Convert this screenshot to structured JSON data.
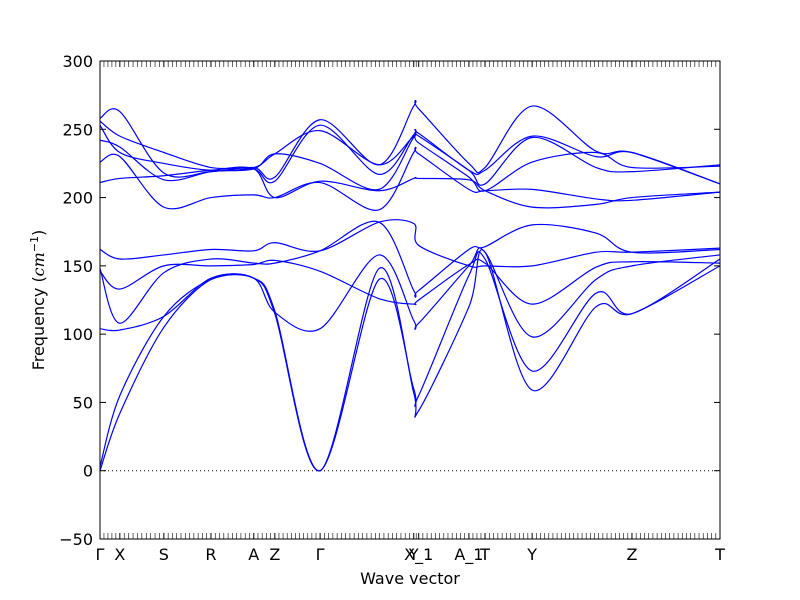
{
  "chart_data": {
    "type": "line",
    "title": "",
    "xlabel": "Wave vector",
    "ylabel": "Frequency ($cm^{-1}$)",
    "ylabel_parts": {
      "prefix": "Frequency (",
      "unit_base": "cm",
      "unit_exp": "−1",
      "suffix": ")"
    },
    "ylim": [
      -50,
      300
    ],
    "yticks": [
      -50,
      0,
      50,
      100,
      150,
      200,
      250,
      300
    ],
    "xlim": [
      0,
      1
    ],
    "x_points": [
      {
        "label": "Γ",
        "x": 0.0
      },
      {
        "label": "X",
        "x": 0.032
      },
      {
        "label": "S",
        "x": 0.103
      },
      {
        "label": "R",
        "x": 0.179
      },
      {
        "label": "A",
        "x": 0.248
      },
      {
        "label": "Z",
        "x": 0.282
      },
      {
        "label": "Γ",
        "x": 0.355
      },
      {
        "label": "Y",
        "x": 0.506
      },
      {
        "label": "X_1",
        "x": 0.514
      },
      {
        "label": "A_1",
        "x": 0.595
      },
      {
        "label": "T",
        "x": 0.621
      },
      {
        "label": "Y",
        "x": 0.697
      },
      {
        "label": "Z",
        "x": 0.858
      },
      {
        "label": "T",
        "x": 1.0
      }
    ],
    "zero_line": {
      "y": 0,
      "style": "dotted"
    },
    "line_color": "#0000ff",
    "grid": false,
    "series": [
      {
        "x": [
          0,
          0.032,
          0.103,
          0.179,
          0.248,
          0.282,
          0.355,
          0.45,
          0.506,
          0.514,
          0.595,
          0.621,
          0.697,
          0.8,
          0.858,
          1
        ],
        "y": [
          0,
          42,
          105,
          140,
          141,
          115,
          0,
          148,
          57,
          44,
          120,
          160,
          59,
          120,
          115,
          150
        ]
      },
      {
        "x": [
          0,
          0.032,
          0.103,
          0.179,
          0.248,
          0.282,
          0.355,
          0.45,
          0.506,
          0.514,
          0.595,
          0.621,
          0.697,
          0.8,
          0.858,
          1
        ],
        "y": [
          3,
          55,
          113,
          140,
          141,
          117,
          0,
          140,
          60,
          55,
          143,
          155,
          73,
          130,
          115,
          155
        ]
      },
      {
        "x": [
          0,
          0.032,
          0.103,
          0.179,
          0.248,
          0.282,
          0.355,
          0.45,
          0.506,
          0.514,
          0.595,
          0.621,
          0.697,
          0.8,
          0.858,
          1
        ],
        "y": [
          104,
          103,
          113,
          141,
          141,
          116,
          104,
          158,
          110,
          108,
          150,
          160,
          98,
          140,
          150,
          158
        ]
      },
      {
        "x": [
          0,
          0.032,
          0.103,
          0.179,
          0.248,
          0.282,
          0.355,
          0.45,
          0.506,
          0.514,
          0.595,
          0.621,
          0.697,
          0.8,
          0.858,
          1
        ],
        "y": [
          146,
          133,
          150,
          150,
          151,
          154,
          146,
          126,
          122,
          125,
          151,
          152,
          122,
          149,
          153,
          152
        ]
      },
      {
        "x": [
          0,
          0.032,
          0.103,
          0.179,
          0.248,
          0.282,
          0.355,
          0.45,
          0.506,
          0.514,
          0.595,
          0.621,
          0.697,
          0.8,
          0.858,
          1
        ],
        "y": [
          148,
          108,
          145,
          155,
          152,
          152,
          161,
          182,
          132,
          132,
          162,
          164,
          180,
          174,
          160,
          162
        ]
      },
      {
        "x": [
          0,
          0.032,
          0.103,
          0.179,
          0.248,
          0.282,
          0.355,
          0.45,
          0.506,
          0.514,
          0.595,
          0.621,
          0.697,
          0.8,
          0.858,
          1
        ],
        "y": [
          162,
          155,
          158,
          162,
          161,
          167,
          161,
          182,
          181,
          165,
          150,
          150,
          150,
          160,
          160,
          163
        ]
      },
      {
        "x": [
          0,
          0.032,
          0.103,
          0.179,
          0.248,
          0.282,
          0.355,
          0.45,
          0.506,
          0.514,
          0.595,
          0.621,
          0.697,
          0.8,
          0.858,
          1
        ],
        "y": [
          211,
          214,
          216,
          220,
          221,
          200,
          212,
          205,
          214,
          214,
          213,
          205,
          193,
          195,
          200,
          204
        ]
      },
      {
        "x": [
          0,
          0.032,
          0.103,
          0.179,
          0.248,
          0.282,
          0.355,
          0.45,
          0.506,
          0.514,
          0.595,
          0.621,
          0.697,
          0.8,
          0.858,
          1
        ],
        "y": [
          226,
          230,
          193,
          200,
          202,
          200,
          211,
          191,
          233,
          232,
          206,
          205,
          206,
          199,
          198,
          204
        ]
      },
      {
        "x": [
          0,
          0.032,
          0.103,
          0.179,
          0.248,
          0.282,
          0.355,
          0.45,
          0.506,
          0.514,
          0.595,
          0.621,
          0.697,
          0.8,
          0.858,
          1
        ],
        "y": [
          242,
          237,
          213,
          219,
          221,
          232,
          225,
          206,
          244,
          240,
          215,
          205,
          226,
          233,
          222,
          223
        ]
      },
      {
        "x": [
          0,
          0.032,
          0.103,
          0.179,
          0.248,
          0.282,
          0.355,
          0.45,
          0.506,
          0.514,
          0.595,
          0.621,
          0.697,
          0.8,
          0.858,
          1
        ],
        "y": [
          253,
          233,
          225,
          220,
          222,
          232,
          249,
          224,
          245,
          245,
          220,
          210,
          244,
          222,
          219,
          224
        ]
      },
      {
        "x": [
          0,
          0.032,
          0.103,
          0.179,
          0.248,
          0.282,
          0.355,
          0.45,
          0.506,
          0.514,
          0.595,
          0.621,
          0.697,
          0.8,
          0.858,
          1
        ],
        "y": [
          256,
          245,
          233,
          222,
          221,
          212,
          253,
          217,
          246,
          247,
          220,
          220,
          245,
          230,
          233,
          210
        ]
      },
      {
        "x": [
          0,
          0.032,
          0.103,
          0.179,
          0.248,
          0.282,
          0.355,
          0.45,
          0.506,
          0.514,
          0.595,
          0.621,
          0.697,
          0.8,
          0.858,
          1
        ],
        "y": [
          258,
          263,
          218,
          219,
          222,
          215,
          257,
          224,
          267,
          265,
          225,
          222,
          267,
          234,
          233,
          210
        ]
      }
    ]
  }
}
